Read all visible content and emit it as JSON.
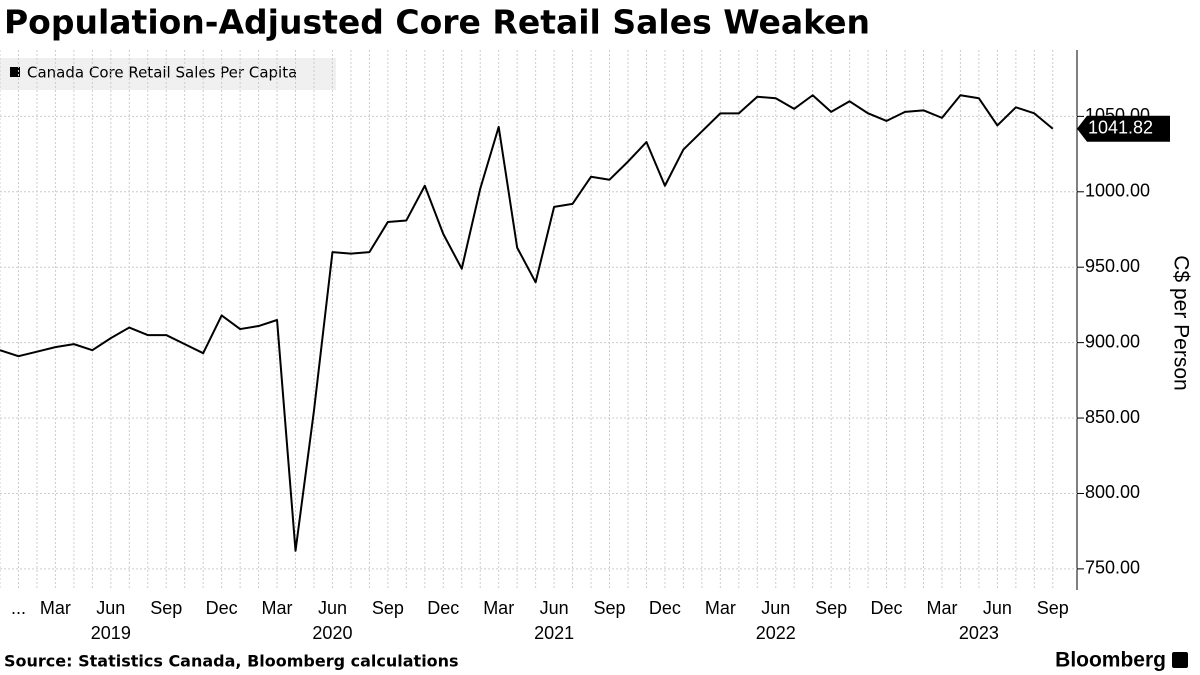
{
  "chart_data": {
    "type": "line",
    "title": "Population-Adjusted Core Retail Sales Weaken",
    "y_label": "C$ per Person",
    "source": "Source: Statistics Canada, Bloomberg calculations",
    "brand": "Bloomberg",
    "x": [
      "2018-12",
      "2019-01",
      "2019-02",
      "2019-03",
      "2019-04",
      "2019-05",
      "2019-06",
      "2019-07",
      "2019-08",
      "2019-09",
      "2019-10",
      "2019-11",
      "2019-12",
      "2020-01",
      "2020-02",
      "2020-03",
      "2020-04",
      "2020-05",
      "2020-06",
      "2020-07",
      "2020-08",
      "2020-09",
      "2020-10",
      "2020-11",
      "2020-12",
      "2021-01",
      "2021-02",
      "2021-03",
      "2021-04",
      "2021-05",
      "2021-06",
      "2021-07",
      "2021-08",
      "2021-09",
      "2021-10",
      "2021-11",
      "2021-12",
      "2022-01",
      "2022-02",
      "2022-03",
      "2022-04",
      "2022-05",
      "2022-06",
      "2022-07",
      "2022-08",
      "2022-09",
      "2022-10",
      "2022-11",
      "2022-12",
      "2023-01",
      "2023-02",
      "2023-03",
      "2023-04",
      "2023-05",
      "2023-06",
      "2023-07",
      "2023-08",
      "2023-09"
    ],
    "series": [
      {
        "name": "Canada Core Retail Sales Per Capita",
        "color": "#000000",
        "values": [
          895,
          891,
          894,
          897,
          899,
          895,
          903,
          910,
          905,
          905,
          899,
          893,
          918,
          909,
          911,
          915,
          762,
          855,
          960,
          959,
          960,
          980,
          981,
          1004,
          972,
          949,
          1002,
          1043,
          963,
          940,
          990,
          992,
          1010,
          1008,
          1020,
          1033,
          1004,
          1028,
          1040,
          1052,
          1052,
          1063,
          1062,
          1055,
          1064,
          1053,
          1060,
          1052,
          1047,
          1053,
          1054,
          1049,
          1064,
          1062,
          1044,
          1056,
          1052,
          1041.82
        ]
      }
    ],
    "ylim": [
      736,
      1094
    ],
    "yticks": [
      {
        "value": 750,
        "label": "750.00"
      },
      {
        "value": 800,
        "label": "800.00"
      },
      {
        "value": 850,
        "label": "850.00"
      },
      {
        "value": 900,
        "label": "900.00"
      },
      {
        "value": 950,
        "label": "950.00"
      },
      {
        "value": 1000,
        "label": "1000.00"
      },
      {
        "value": 1050,
        "label": "1050.00"
      }
    ],
    "xticks": [
      {
        "value": "2019-01",
        "label": "..."
      },
      {
        "value": "2019-03",
        "label": "Mar"
      },
      {
        "value": "2019-06",
        "label": "Jun"
      },
      {
        "value": "2019-09",
        "label": "Sep"
      },
      {
        "value": "2019-12",
        "label": "Dec"
      },
      {
        "value": "2020-03",
        "label": "Mar"
      },
      {
        "value": "2020-06",
        "label": "Jun"
      },
      {
        "value": "2020-09",
        "label": "Sep"
      },
      {
        "value": "2020-12",
        "label": "Dec"
      },
      {
        "value": "2021-03",
        "label": "Mar"
      },
      {
        "value": "2021-06",
        "label": "Jun"
      },
      {
        "value": "2021-09",
        "label": "Sep"
      },
      {
        "value": "2021-12",
        "label": "Dec"
      },
      {
        "value": "2022-03",
        "label": "Mar"
      },
      {
        "value": "2022-06",
        "label": "Jun"
      },
      {
        "value": "2022-09",
        "label": "Sep"
      },
      {
        "value": "2022-12",
        "label": "Dec"
      },
      {
        "value": "2023-03",
        "label": "Mar"
      },
      {
        "value": "2023-06",
        "label": "Jun"
      },
      {
        "value": "2023-09",
        "label": "Sep"
      }
    ],
    "year_labels": [
      {
        "value": "2019-06",
        "label": "2019"
      },
      {
        "value": "2020-06",
        "label": "2020"
      },
      {
        "value": "2021-06",
        "label": "2021"
      },
      {
        "value": "2022-06",
        "label": "2022"
      },
      {
        "value": "2023-05",
        "label": "2023"
      }
    ],
    "grid": true
  }
}
